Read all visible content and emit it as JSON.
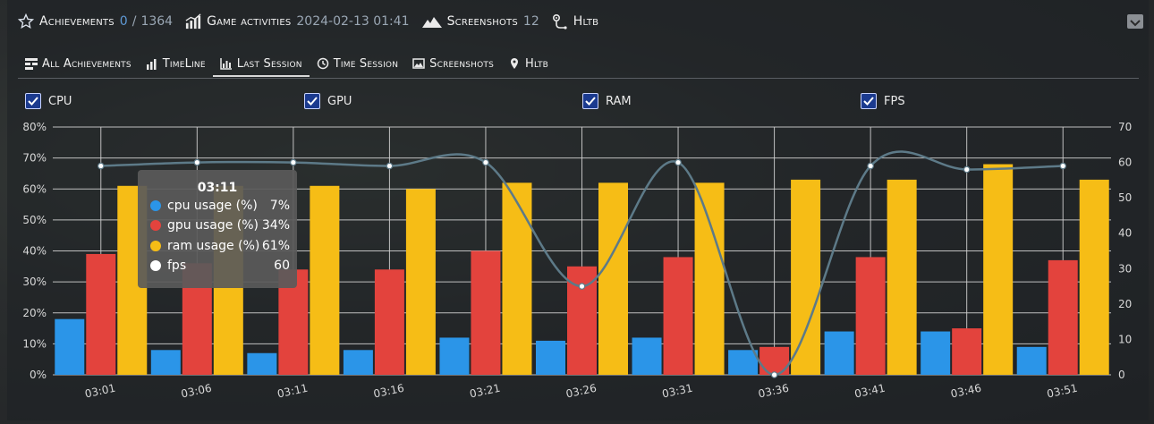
{
  "header": {
    "achievements": {
      "label": "Achievements",
      "unlocked": "0",
      "separator": "/",
      "total": "1364"
    },
    "game_activities": {
      "label": "Game activities",
      "datetime": "2024-02-13 01:41"
    },
    "screenshots": {
      "label": "Screenshots",
      "count": "12"
    },
    "hltb": {
      "label": "Hltb"
    }
  },
  "tabs": [
    {
      "label": "All Achievements",
      "icon": "list-icon"
    },
    {
      "label": "TimeLine",
      "icon": "bar-chart-icon"
    },
    {
      "label": "Last Session",
      "icon": "line-chart-icon",
      "active": true
    },
    {
      "label": "Time Session",
      "icon": "clock-icon"
    },
    {
      "label": "Screenshots",
      "icon": "image-icon"
    },
    {
      "label": "Hltb",
      "icon": "pin-icon"
    }
  ],
  "toggles": [
    {
      "label": "CPU",
      "checked": true
    },
    {
      "label": "GPU",
      "checked": true
    },
    {
      "label": "RAM",
      "checked": true
    },
    {
      "label": "FPS",
      "checked": true
    }
  ],
  "colors": {
    "cpu": "#2b95e8",
    "gpu": "#e3433d",
    "ram": "#f6bd16",
    "fps_line": "#5d7a88",
    "accent": "#5f9ad6"
  },
  "chart_data": {
    "type": "bar",
    "categories": [
      "03:01",
      "03:06",
      "03:11",
      "03:16",
      "03:21",
      "03:26",
      "03:31",
      "03:36",
      "03:41",
      "03:46",
      "03:51"
    ],
    "series": [
      {
        "name": "cpu usage (%)",
        "axis": "left",
        "values": [
          18,
          8,
          7,
          8,
          12,
          11,
          12,
          8,
          14,
          14,
          9
        ]
      },
      {
        "name": "gpu usage (%)",
        "axis": "left",
        "values": [
          39,
          36,
          34,
          34,
          40,
          35,
          38,
          9,
          38,
          15,
          37
        ]
      },
      {
        "name": "ram usage (%)",
        "axis": "left",
        "values": [
          61,
          61,
          61,
          60,
          62,
          62,
          62,
          63,
          63,
          68,
          63
        ]
      },
      {
        "name": "fps",
        "axis": "right",
        "type": "line",
        "values": [
          59,
          60,
          60,
          59,
          60,
          25,
          60,
          0,
          59,
          58,
          59
        ]
      }
    ],
    "y_left": {
      "min": 0,
      "max": 80,
      "ticks": [
        "0%",
        "10%",
        "20%",
        "30%",
        "40%",
        "50%",
        "60%",
        "70%",
        "80%"
      ]
    },
    "y_right": {
      "min": 0,
      "max": 70,
      "ticks": [
        "0",
        "10",
        "20",
        "30",
        "40",
        "50",
        "60",
        "70"
      ]
    },
    "grid": true
  },
  "tooltip": {
    "title": "03:11",
    "rows": [
      {
        "label": "cpu usage (%)",
        "value": "7%"
      },
      {
        "label": "gpu usage (%)",
        "value": "34%"
      },
      {
        "label": "ram usage (%)",
        "value": "61%"
      },
      {
        "label": "fps",
        "value": "60"
      }
    ]
  }
}
